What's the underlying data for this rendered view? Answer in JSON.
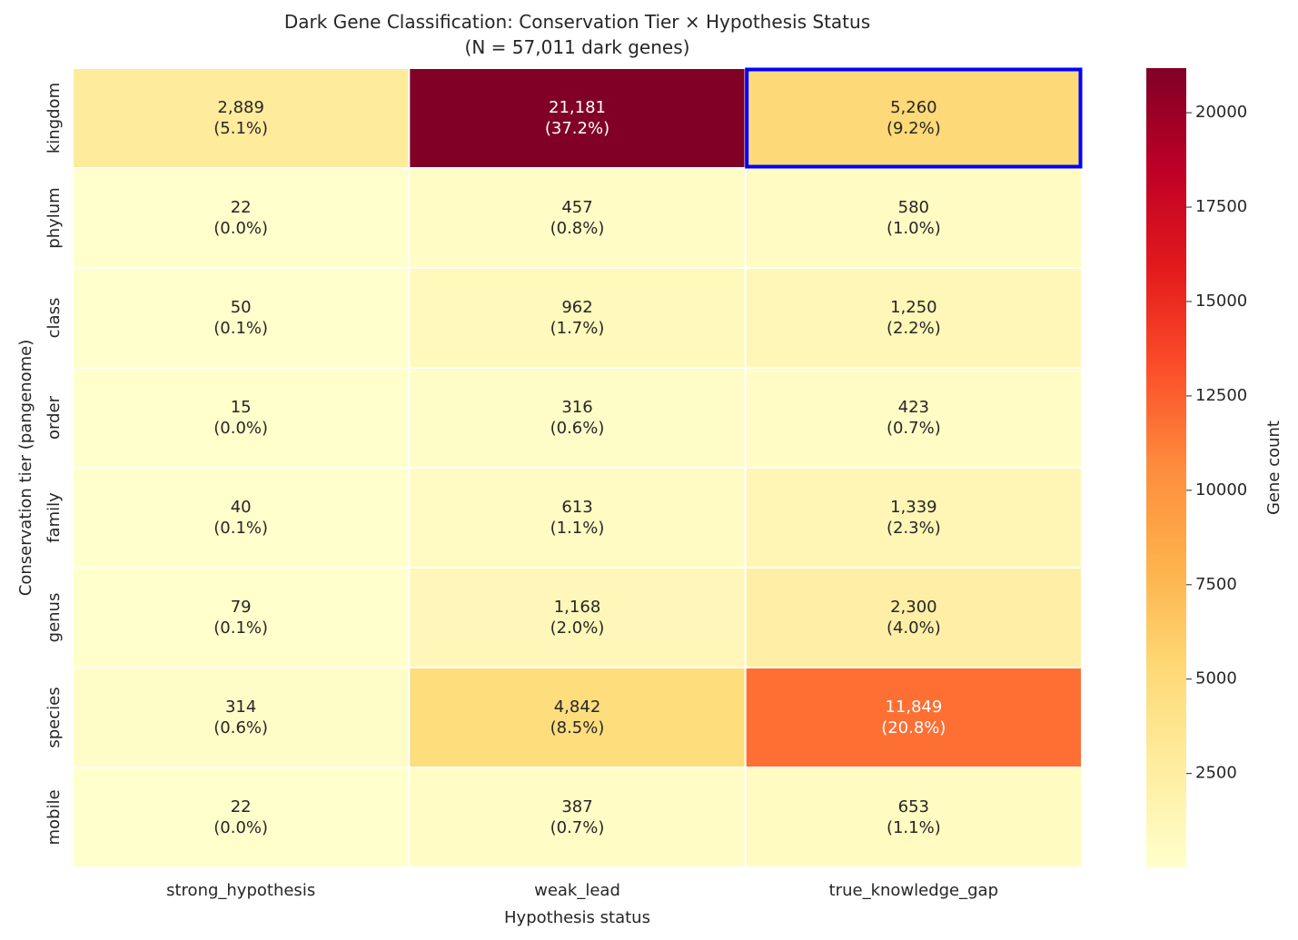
{
  "chart_data": {
    "type": "heatmap",
    "title": "Dark Gene Classification: Conservation Tier × Hypothesis Status",
    "subtitle": "(N = 57,011 dark genes)",
    "xlabel": "Hypothesis status",
    "ylabel": "Conservation tier (pangenome)",
    "x_categories": [
      "strong_hypothesis",
      "weak_lead",
      "true_knowledge_gap"
    ],
    "y_categories": [
      "kingdom",
      "phylum",
      "class",
      "order",
      "family",
      "genus",
      "species",
      "mobile"
    ],
    "values": [
      [
        2889,
        21181,
        5260
      ],
      [
        22,
        457,
        580
      ],
      [
        50,
        962,
        1250
      ],
      [
        15,
        316,
        423
      ],
      [
        40,
        613,
        1339
      ],
      [
        79,
        1168,
        2300
      ],
      [
        314,
        4842,
        11849
      ],
      [
        22,
        387,
        653
      ]
    ],
    "labels": [
      [
        [
          "2,889",
          "(5.1%)"
        ],
        [
          "21,181",
          "(37.2%)"
        ],
        [
          "5,260",
          "(9.2%)"
        ]
      ],
      [
        [
          "22",
          "(0.0%)"
        ],
        [
          "457",
          "(0.8%)"
        ],
        [
          "580",
          "(1.0%)"
        ]
      ],
      [
        [
          "50",
          "(0.1%)"
        ],
        [
          "962",
          "(1.7%)"
        ],
        [
          "1,250",
          "(2.2%)"
        ]
      ],
      [
        [
          "15",
          "(0.0%)"
        ],
        [
          "316",
          "(0.6%)"
        ],
        [
          "423",
          "(0.7%)"
        ]
      ],
      [
        [
          "40",
          "(0.1%)"
        ],
        [
          "613",
          "(1.1%)"
        ],
        [
          "1,339",
          "(2.3%)"
        ]
      ],
      [
        [
          "79",
          "(0.1%)"
        ],
        [
          "1,168",
          "(2.0%)"
        ],
        [
          "2,300",
          "(4.0%)"
        ]
      ],
      [
        [
          "314",
          "(0.6%)"
        ],
        [
          "4,842",
          "(8.5%)"
        ],
        [
          "11,849",
          "(20.8%)"
        ]
      ],
      [
        [
          "22",
          "(0.0%)"
        ],
        [
          "387",
          "(0.7%)"
        ],
        [
          "653",
          "(1.1%)"
        ]
      ]
    ],
    "colormap": "YlOrRd",
    "colormap_stops": [
      "#ffffcc",
      "#ffeda0",
      "#fed976",
      "#feb24c",
      "#fd8d3c",
      "#fc4e2a",
      "#e31a1c",
      "#bd0026",
      "#800026"
    ],
    "vmin": 15,
    "vmax": 21181,
    "colorbar": {
      "label": "Gene count",
      "ticks": [
        2500,
        5000,
        7500,
        10000,
        12500,
        15000,
        17500,
        20000
      ]
    },
    "highlight": {
      "row": "kingdom",
      "column": "true_knowledge_gap",
      "color": "#0000ff"
    }
  }
}
